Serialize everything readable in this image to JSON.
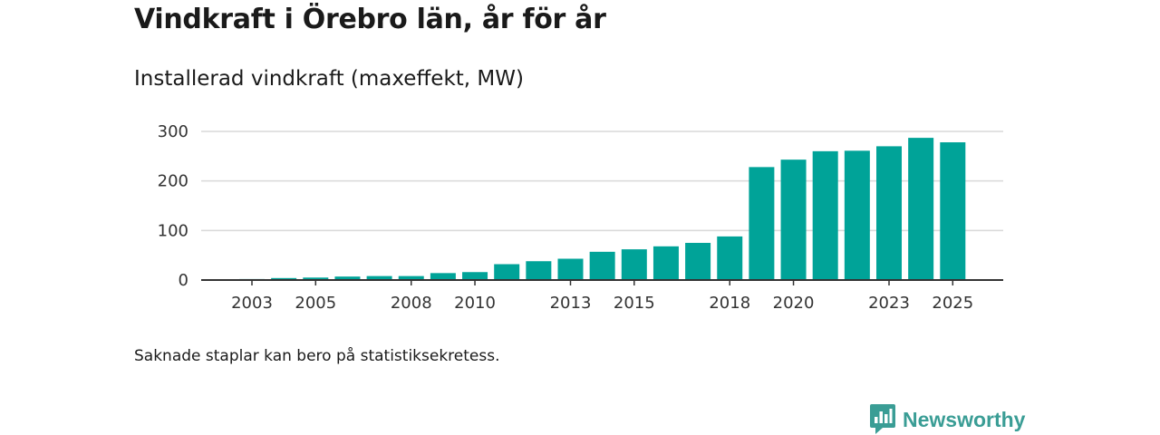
{
  "title": "Vindkraft i Örebro län, år för år",
  "subtitle": "Installerad vindkraft (maxeffekt, MW)",
  "note": "Saknade staplar kan bero på statistiksekretess.",
  "brand": {
    "name": "Newsworthy",
    "icon": "newsworthy-logo-icon",
    "color": "#3a9d95"
  },
  "colors": {
    "bar": "#00a398",
    "grid": "#d9d9d9",
    "axis": "#333333"
  },
  "chart_data": {
    "type": "bar",
    "title": "Vindkraft i Örebro län, år för år",
    "ylabel": "Installerad vindkraft (maxeffekt, MW)",
    "xlabel": "",
    "ylim": [
      0,
      300
    ],
    "yticks": [
      0,
      100,
      200,
      300
    ],
    "xtick_labels": [
      "2003",
      "2005",
      "2008",
      "2010",
      "2013",
      "2015",
      "2018",
      "2020",
      "2023",
      "2025"
    ],
    "grid": true,
    "categories": [
      "2002",
      "2003",
      "2004",
      "2005",
      "2006",
      "2007",
      "2008",
      "2009",
      "2010",
      "2011",
      "2012",
      "2013",
      "2014",
      "2015",
      "2016",
      "2017",
      "2018",
      "2019",
      "2020",
      "2021",
      "2022",
      "2023",
      "2024",
      "2025"
    ],
    "values": [
      0,
      2,
      4,
      5,
      7,
      8,
      8,
      14,
      16,
      32,
      38,
      43,
      57,
      62,
      68,
      75,
      88,
      228,
      243,
      260,
      261,
      270,
      287,
      278
    ]
  }
}
